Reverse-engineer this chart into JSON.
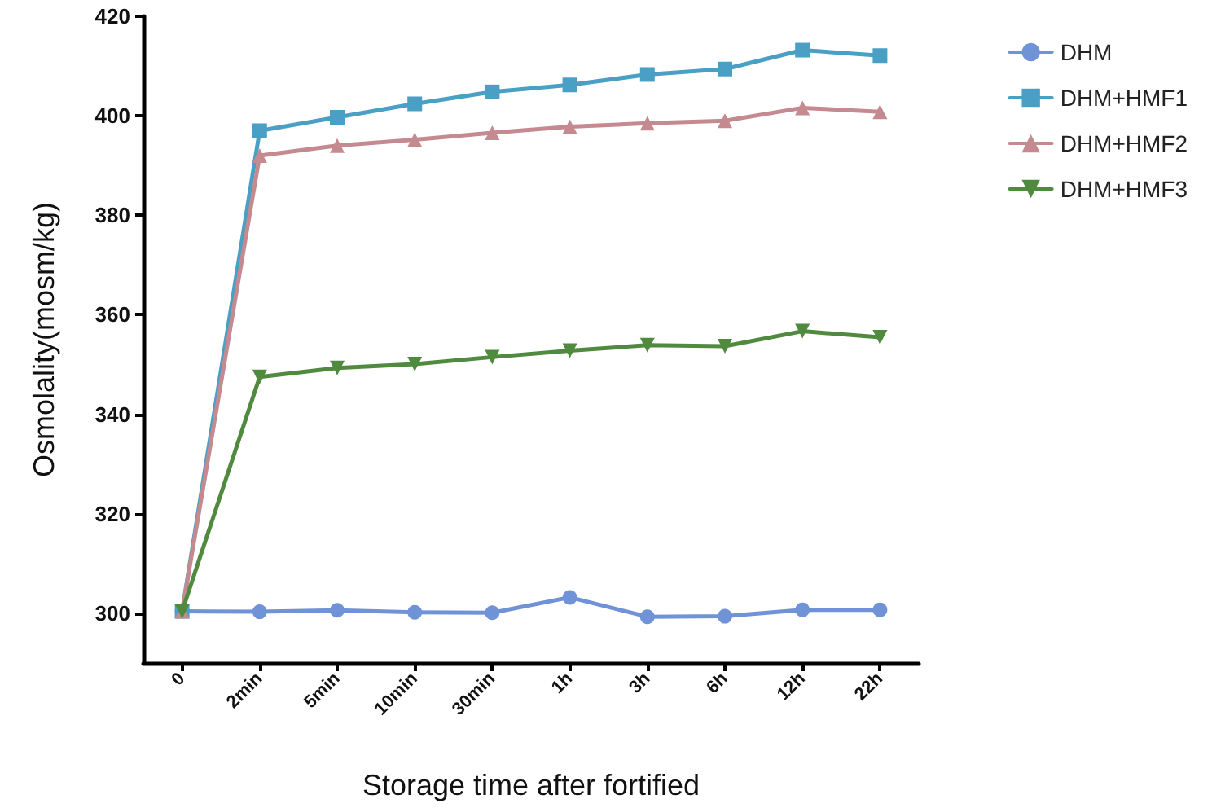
{
  "chart_data": {
    "type": "line",
    "xlabel": "Storage time after fortified",
    "ylabel": "Osmolality(mosm/kg)",
    "categories": [
      "0",
      "2min",
      "5min",
      "10min",
      "30min",
      "1h",
      "3h",
      "6h",
      "12h",
      "22h"
    ],
    "series": [
      {
        "name": "DHM",
        "color": "#6f93d6",
        "marker": "circle",
        "values": [
          300.4,
          300.3,
          300.6,
          300.2,
          300.1,
          303.2,
          299.3,
          299.4,
          300.7,
          300.7
        ]
      },
      {
        "name": "DHM+HMF1",
        "color": "#4a9fc4",
        "marker": "square",
        "values": [
          300.4,
          397,
          399.7,
          402.4,
          404.8,
          406.2,
          408.3,
          409.4,
          413.2,
          412.1
        ]
      },
      {
        "name": "DHM+HMF2",
        "color": "#c48a90",
        "marker": "triangle",
        "values": [
          300.4,
          392,
          394,
          395.2,
          396.6,
          397.8,
          398.5,
          399,
          401.6,
          400.8
        ]
      },
      {
        "name": "DHM+HMF3",
        "color": "#4f8a3f",
        "marker": "triangle-down",
        "values": [
          300.4,
          347.5,
          349.3,
          350.1,
          351.5,
          352.8,
          353.9,
          353.7,
          356.7,
          355.5
        ]
      }
    ],
    "ylim": [
      290,
      420
    ],
    "yticks": [
      300,
      320,
      340,
      360,
      380,
      400,
      420
    ],
    "grid": false,
    "legend": "top right"
  }
}
